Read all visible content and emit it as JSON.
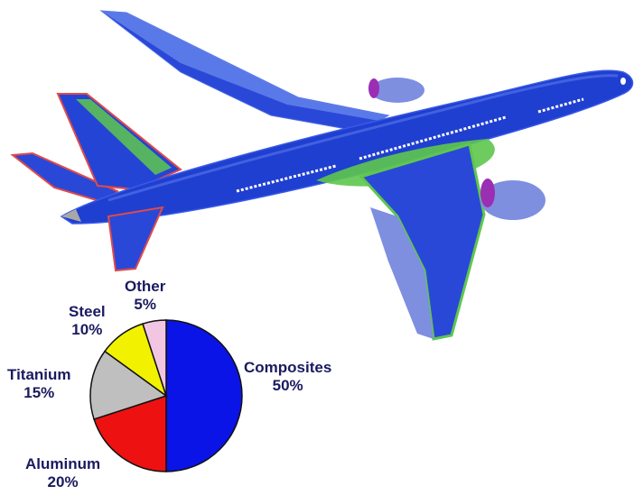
{
  "colors": {
    "composites": "#0a14e6",
    "aluminum": "#ee1111",
    "titanium": "#bfbfbf",
    "steel": "#f2f200",
    "other": "#f2c6e2",
    "fuselage": "#1f3fd0",
    "trim_green": "#5ec74e",
    "trim_red": "#e04a4a",
    "engine": "#7e8fe0",
    "engine_purple": "#9a2fb3",
    "label_text": "#1a1a60"
  },
  "chart_data": {
    "type": "pie",
    "slices": [
      {
        "label": "Composites",
        "value": 50,
        "value_text": "50%",
        "color": "#0a14e6"
      },
      {
        "label": "Aluminum",
        "value": 20,
        "value_text": "20%",
        "color": "#ee1111"
      },
      {
        "label": "Titanium",
        "value": 15,
        "value_text": "15%",
        "color": "#bfbfbf"
      },
      {
        "label": "Steel",
        "value": 10,
        "value_text": "10%",
        "color": "#f2f200"
      },
      {
        "label": "Other",
        "value": 5,
        "value_text": "5%",
        "color": "#f2c6e2"
      }
    ]
  }
}
